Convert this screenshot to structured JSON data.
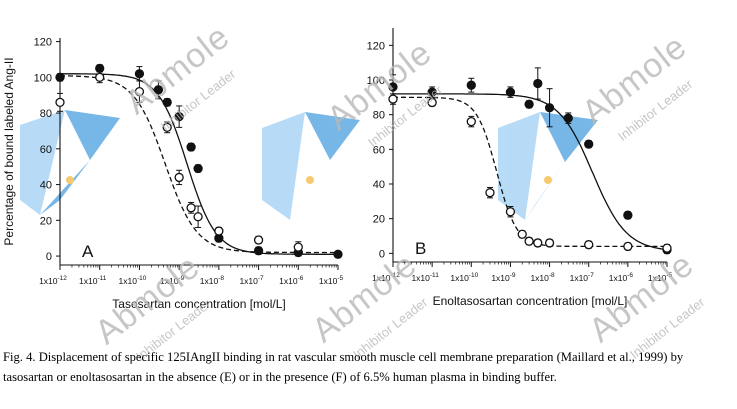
{
  "chart_data": [
    {
      "type": "scatter",
      "panel_label": "A",
      "xlabel": "Tasosartan concentration [mol/L]",
      "ylabel": "Percentage of  bound labeled Ang-II",
      "x_scale": "log",
      "xlim": [
        1e-12,
        1e-05
      ],
      "ylim": [
        -5,
        122
      ],
      "yticks": [
        0,
        20,
        40,
        60,
        80,
        100,
        120
      ],
      "xticks": [
        1e-12,
        1e-11,
        1e-10,
        1e-09,
        1e-08,
        1e-07,
        1e-06,
        1e-05
      ],
      "series": [
        {
          "marker": "filled-circle",
          "line": "solid",
          "x": [
            1e-12,
            1e-11,
            1e-10,
            3e-10,
            5e-10,
            1e-09,
            2e-09,
            3e-09,
            1e-08,
            1e-07,
            1e-06,
            1e-05
          ],
          "y": [
            100,
            105,
            102,
            93,
            86,
            78,
            61,
            49,
            10,
            3,
            2,
            1
          ],
          "err": [
            2,
            2,
            4,
            5,
            2,
            6,
            2,
            2,
            2,
            2,
            2,
            1
          ]
        },
        {
          "marker": "open-circle",
          "line": "dashed",
          "x": [
            1e-12,
            1e-11,
            1e-10,
            5e-10,
            1e-09,
            2e-09,
            3e-09,
            1e-08,
            1e-07,
            1e-06
          ],
          "y": [
            86,
            100,
            92,
            72,
            44,
            27,
            22,
            14,
            9,
            5
          ],
          "err": [
            5,
            3,
            6,
            3,
            4,
            3,
            6,
            2,
            2,
            3
          ]
        }
      ],
      "fits": [
        {
          "style": "solid",
          "top": 102,
          "bottom": 1,
          "logEC50": -8.8,
          "hill": 1.2
        },
        {
          "style": "dashed",
          "top": 101,
          "bottom": 2,
          "logEC50": -9.35,
          "hill": 1.1
        }
      ]
    },
    {
      "type": "scatter",
      "panel_label": "B",
      "xlabel": "Enoltasosartan concentration [mol/L]",
      "ylabel": "",
      "x_scale": "log",
      "xlim": [
        1e-12,
        1e-05
      ],
      "ylim": [
        -5,
        130
      ],
      "yticks": [
        0,
        20,
        40,
        60,
        80,
        100,
        120
      ],
      "xticks": [
        1e-12,
        1e-11,
        1e-10,
        1e-09,
        1e-08,
        1e-07,
        1e-06,
        1e-05
      ],
      "series": [
        {
          "marker": "filled-circle",
          "line": "solid",
          "x": [
            1e-12,
            1e-11,
            1e-10,
            1e-09,
            3e-09,
            5e-09,
            1e-08,
            3e-08,
            1e-07,
            1e-06,
            1e-05
          ],
          "y": [
            96,
            93,
            97,
            93,
            86,
            98,
            84,
            78,
            63,
            22,
            2
          ],
          "err": [
            7,
            3,
            4,
            3,
            2,
            9,
            11,
            3,
            2,
            2,
            2
          ]
        },
        {
          "marker": "open-circle",
          "line": "dashed",
          "x": [
            1e-12,
            1e-11,
            1e-10,
            3e-10,
            1e-09,
            2e-09,
            3e-09,
            5e-09,
            1e-08,
            1e-07,
            1e-06,
            1e-05
          ],
          "y": [
            89,
            87,
            76,
            35,
            24,
            11,
            7,
            6,
            6,
            5,
            4,
            3
          ],
          "err": [
            3,
            2,
            3,
            3,
            3,
            2,
            2,
            2,
            2,
            2,
            2,
            2
          ]
        }
      ],
      "fits": [
        {
          "style": "solid",
          "top": 92,
          "bottom": 1,
          "logEC50": -6.9,
          "hill": 1.0
        },
        {
          "style": "dashed",
          "top": 90,
          "bottom": 4,
          "logEC50": -9.35,
          "hill": 1.7
        }
      ]
    }
  ],
  "caption": "Fig. 4. Displacement of specific 125IAngII binding in rat vascular smooth muscle cell membrane preparation (Maillard et al., 1999) by tasosartan or enoltasosartan in the absence (E) or in the presence (F) of 6.5% human plasma in binding buffer.",
  "watermark": {
    "brand": "Abmole",
    "tagline": "Inhibitor Leader"
  },
  "colors": {
    "ink": "#111111",
    "logo_blue": "#4a9fe0",
    "logo_light": "#9fd0f5",
    "logo_dot": "#f5b942",
    "watermark": "#b8b8b8"
  }
}
